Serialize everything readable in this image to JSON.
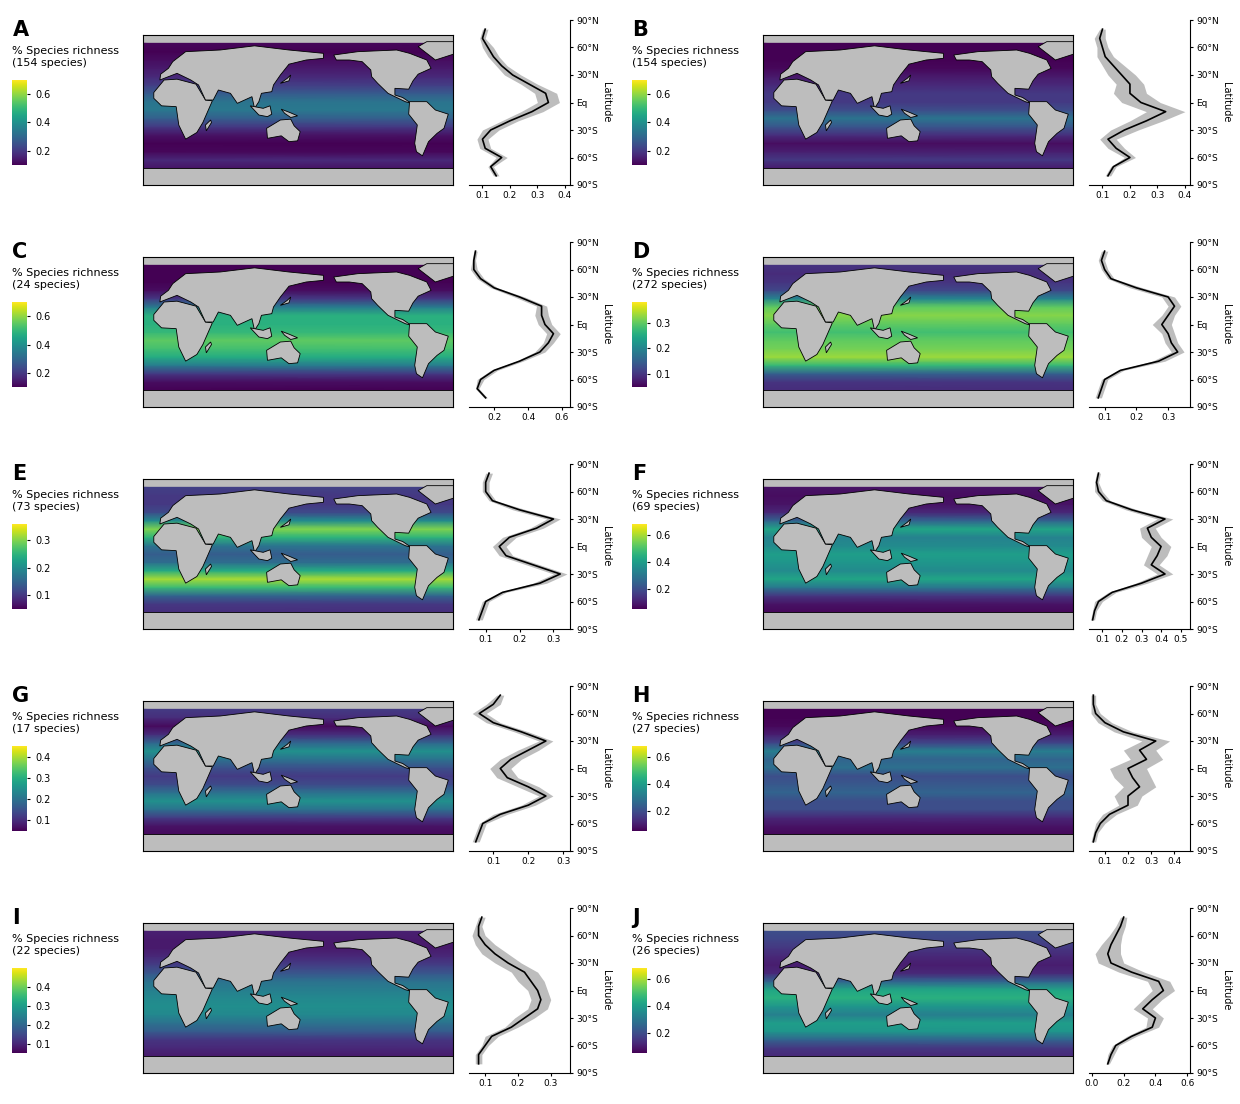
{
  "chart_data": [
    {
      "type": "line",
      "title": "A",
      "colorbar_label": "% Species richness\n(154 species)",
      "colorbar_range": [
        0.1,
        0.7
      ],
      "colorbar_ticks": [
        0.2,
        0.4,
        0.6
      ],
      "latitudes": [
        -80,
        -70,
        -60,
        -50,
        -40,
        -30,
        -20,
        -10,
        0,
        10,
        20,
        30,
        40,
        50,
        60,
        70,
        80
      ],
      "values": [
        0.15,
        0.13,
        0.17,
        0.11,
        0.1,
        0.13,
        0.2,
        0.28,
        0.34,
        0.33,
        0.27,
        0.21,
        0.17,
        0.14,
        0.12,
        0.1,
        0.11
      ],
      "error": [
        0.01,
        0.01,
        0.02,
        0.02,
        0.02,
        0.03,
        0.03,
        0.04,
        0.04,
        0.04,
        0.03,
        0.03,
        0.02,
        0.02,
        0.02,
        0.01,
        0.01
      ],
      "xlim": [
        0.05,
        0.42
      ],
      "xticks": [
        0.1,
        0.2,
        0.3,
        0.4
      ],
      "ylim": [
        -90,
        90
      ],
      "yticks": [
        {
          "value": -90,
          "label": "90°S"
        },
        {
          "value": -60,
          "label": "60°S"
        },
        {
          "value": -30,
          "label": "30°S"
        },
        {
          "value": 0,
          "label": "Eq"
        },
        {
          "value": 30,
          "label": "30°N"
        },
        {
          "value": 60,
          "label": "60°N"
        },
        {
          "value": 90,
          "label": "90°N"
        }
      ],
      "ylabel": "Latitude",
      "color": "#000000"
    },
    {
      "type": "line",
      "title": "B",
      "colorbar_label": "% Species richness\n(154 species)",
      "colorbar_range": [
        0.1,
        0.7
      ],
      "colorbar_ticks": [
        0.2,
        0.4,
        0.6
      ],
      "latitudes": [
        -80,
        -70,
        -60,
        -50,
        -40,
        -30,
        -20,
        -10,
        0,
        10,
        20,
        30,
        40,
        50,
        60,
        70,
        80
      ],
      "values": [
        0.12,
        0.14,
        0.2,
        0.15,
        0.12,
        0.18,
        0.26,
        0.33,
        0.24,
        0.2,
        0.2,
        0.17,
        0.14,
        0.11,
        0.1,
        0.09,
        0.1
      ],
      "error": [
        0.01,
        0.01,
        0.02,
        0.03,
        0.03,
        0.05,
        0.06,
        0.07,
        0.07,
        0.06,
        0.05,
        0.05,
        0.04,
        0.03,
        0.02,
        0.02,
        0.01
      ],
      "xlim": [
        0.05,
        0.42
      ],
      "xticks": [
        0.1,
        0.2,
        0.3,
        0.4
      ],
      "ylim": [
        -90,
        90
      ],
      "yticks": [
        {
          "value": -90,
          "label": "90°S"
        },
        {
          "value": -60,
          "label": "60°S"
        },
        {
          "value": -30,
          "label": "30°S"
        },
        {
          "value": 0,
          "label": "Eq"
        },
        {
          "value": 30,
          "label": "30°N"
        },
        {
          "value": 60,
          "label": "60°N"
        },
        {
          "value": 90,
          "label": "90°N"
        }
      ],
      "ylabel": "Latitude",
      "color": "#000000"
    },
    {
      "type": "line",
      "title": "C",
      "colorbar_label": "% Species richness\n(24 species)",
      "colorbar_range": [
        0.1,
        0.7
      ],
      "colorbar_ticks": [
        0.2,
        0.4,
        0.6
      ],
      "latitudes": [
        -80,
        -70,
        -60,
        -50,
        -40,
        -30,
        -20,
        -10,
        0,
        10,
        20,
        30,
        40,
        50,
        60,
        70,
        80
      ],
      "values": [
        0.15,
        0.1,
        0.12,
        0.2,
        0.35,
        0.47,
        0.52,
        0.55,
        0.5,
        0.48,
        0.48,
        0.35,
        0.2,
        0.12,
        0.08,
        0.08,
        0.09
      ],
      "error": [
        0.01,
        0.01,
        0.02,
        0.02,
        0.02,
        0.03,
        0.03,
        0.04,
        0.04,
        0.04,
        0.03,
        0.03,
        0.02,
        0.02,
        0.02,
        0.01,
        0.01
      ],
      "xlim": [
        0.05,
        0.65
      ],
      "xticks": [
        0.2,
        0.4,
        0.6
      ],
      "ylim": [
        -90,
        90
      ],
      "yticks": [
        {
          "value": -90,
          "label": "90°S"
        },
        {
          "value": -60,
          "label": "60°S"
        },
        {
          "value": -30,
          "label": "30°S"
        },
        {
          "value": 0,
          "label": "Eq"
        },
        {
          "value": 30,
          "label": "30°N"
        },
        {
          "value": 60,
          "label": "60°N"
        },
        {
          "value": 90,
          "label": "90°N"
        }
      ],
      "ylabel": "Latitude",
      "color": "#000000"
    },
    {
      "type": "line",
      "title": "D",
      "colorbar_label": "% Species richness\n(272 species)",
      "colorbar_range": [
        0.05,
        0.38
      ],
      "colorbar_ticks": [
        0.1,
        0.2,
        0.3
      ],
      "latitudes": [
        -80,
        -70,
        -60,
        -50,
        -40,
        -30,
        -20,
        -10,
        0,
        10,
        20,
        30,
        40,
        50,
        60,
        70,
        80
      ],
      "values": [
        0.08,
        0.09,
        0.1,
        0.15,
        0.27,
        0.33,
        0.31,
        0.3,
        0.28,
        0.3,
        0.32,
        0.3,
        0.2,
        0.12,
        0.1,
        0.09,
        0.1
      ],
      "error": [
        0.01,
        0.01,
        0.01,
        0.01,
        0.02,
        0.02,
        0.02,
        0.02,
        0.03,
        0.02,
        0.02,
        0.02,
        0.02,
        0.01,
        0.01,
        0.01,
        0.01
      ],
      "xlim": [
        0.05,
        0.37
      ],
      "xticks": [
        0.1,
        0.2,
        0.3
      ],
      "ylim": [
        -90,
        90
      ],
      "yticks": [
        {
          "value": -90,
          "label": "90°S"
        },
        {
          "value": -60,
          "label": "60°S"
        },
        {
          "value": -30,
          "label": "30°S"
        },
        {
          "value": 0,
          "label": "Eq"
        },
        {
          "value": 30,
          "label": "30°N"
        },
        {
          "value": 60,
          "label": "60°N"
        },
        {
          "value": 90,
          "label": "90°N"
        }
      ],
      "ylabel": "Latitude",
      "color": "#000000"
    },
    {
      "type": "line",
      "title": "E",
      "colorbar_label": "% Species richness\n(73 species)",
      "colorbar_range": [
        0.05,
        0.36
      ],
      "colorbar_ticks": [
        0.1,
        0.2,
        0.3
      ],
      "latitudes": [
        -80,
        -70,
        -60,
        -50,
        -40,
        -30,
        -20,
        -10,
        0,
        10,
        20,
        30,
        40,
        50,
        60,
        70,
        80
      ],
      "values": [
        0.08,
        0.09,
        0.1,
        0.15,
        0.26,
        0.32,
        0.24,
        0.16,
        0.14,
        0.17,
        0.25,
        0.3,
        0.2,
        0.12,
        0.1,
        0.1,
        0.11
      ],
      "error": [
        0.01,
        0.01,
        0.01,
        0.01,
        0.02,
        0.02,
        0.02,
        0.02,
        0.02,
        0.02,
        0.02,
        0.02,
        0.02,
        0.01,
        0.01,
        0.01,
        0.01
      ],
      "xlim": [
        0.05,
        0.35
      ],
      "xticks": [
        0.1,
        0.2,
        0.3
      ],
      "ylim": [
        -90,
        90
      ],
      "yticks": [
        {
          "value": -90,
          "label": "90°S"
        },
        {
          "value": -60,
          "label": "60°S"
        },
        {
          "value": -30,
          "label": "30°S"
        },
        {
          "value": 0,
          "label": "Eq"
        },
        {
          "value": 30,
          "label": "30°N"
        },
        {
          "value": 60,
          "label": "60°N"
        },
        {
          "value": 90,
          "label": "90°N"
        }
      ],
      "ylabel": "Latitude",
      "color": "#000000"
    },
    {
      "type": "line",
      "title": "F",
      "colorbar_label": "% Species richness\n(69 species)",
      "colorbar_range": [
        0.05,
        0.68
      ],
      "colorbar_ticks": [
        0.2,
        0.4,
        0.6
      ],
      "latitudes": [
        -80,
        -70,
        -60,
        -50,
        -40,
        -30,
        -20,
        -10,
        0,
        10,
        20,
        30,
        40,
        50,
        60,
        70,
        80
      ],
      "values": [
        0.05,
        0.06,
        0.08,
        0.15,
        0.3,
        0.42,
        0.35,
        0.38,
        0.4,
        0.35,
        0.33,
        0.42,
        0.25,
        0.12,
        0.08,
        0.07,
        0.08
      ],
      "error": [
        0.01,
        0.01,
        0.02,
        0.02,
        0.03,
        0.04,
        0.04,
        0.05,
        0.05,
        0.05,
        0.04,
        0.04,
        0.03,
        0.02,
        0.02,
        0.01,
        0.01
      ],
      "xlim": [
        0.03,
        0.55
      ],
      "xticks": [
        0.1,
        0.2,
        0.3,
        0.4,
        0.5
      ],
      "ylim": [
        -90,
        90
      ],
      "yticks": [
        {
          "value": -90,
          "label": "90°S"
        },
        {
          "value": -60,
          "label": "60°S"
        },
        {
          "value": -30,
          "label": "30°S"
        },
        {
          "value": 0,
          "label": "Eq"
        },
        {
          "value": 30,
          "label": "30°N"
        },
        {
          "value": 60,
          "label": "60°N"
        },
        {
          "value": 90,
          "label": "90°N"
        }
      ],
      "ylabel": "Latitude",
      "color": "#000000"
    },
    {
      "type": "line",
      "title": "G",
      "colorbar_label": "% Species richness\n(17 species)",
      "colorbar_range": [
        0.05,
        0.45
      ],
      "colorbar_ticks": [
        0.1,
        0.2,
        0.3,
        0.4
      ],
      "latitudes": [
        -80,
        -70,
        -60,
        -50,
        -40,
        -30,
        -20,
        -10,
        0,
        10,
        20,
        30,
        40,
        50,
        60,
        70,
        80
      ],
      "values": [
        0.05,
        0.06,
        0.07,
        0.12,
        0.2,
        0.25,
        0.2,
        0.14,
        0.12,
        0.15,
        0.2,
        0.25,
        0.18,
        0.1,
        0.06,
        0.1,
        0.12
      ],
      "error": [
        0.01,
        0.01,
        0.01,
        0.02,
        0.02,
        0.02,
        0.03,
        0.03,
        0.03,
        0.03,
        0.03,
        0.02,
        0.02,
        0.02,
        0.02,
        0.02,
        0.01
      ],
      "xlim": [
        0.03,
        0.32
      ],
      "xticks": [
        0.1,
        0.2,
        0.3
      ],
      "ylim": [
        -90,
        90
      ],
      "yticks": [
        {
          "value": -90,
          "label": "90°S"
        },
        {
          "value": -60,
          "label": "60°S"
        },
        {
          "value": -30,
          "label": "30°S"
        },
        {
          "value": 0,
          "label": "Eq"
        },
        {
          "value": 30,
          "label": "30°N"
        },
        {
          "value": 60,
          "label": "60°N"
        },
        {
          "value": 90,
          "label": "90°N"
        }
      ],
      "ylabel": "Latitude",
      "color": "#000000"
    },
    {
      "type": "line",
      "title": "H",
      "colorbar_label": "% Species richness\n(27 species)",
      "colorbar_range": [
        0.05,
        0.68
      ],
      "colorbar_ticks": [
        0.2,
        0.4,
        0.6
      ],
      "latitudes": [
        -80,
        -70,
        -60,
        -50,
        -40,
        -30,
        -20,
        -10,
        0,
        10,
        20,
        30,
        40,
        50,
        60,
        70,
        80
      ],
      "values": [
        0.05,
        0.06,
        0.08,
        0.12,
        0.2,
        0.2,
        0.25,
        0.22,
        0.2,
        0.28,
        0.25,
        0.32,
        0.18,
        0.1,
        0.06,
        0.05,
        0.05
      ],
      "error": [
        0.01,
        0.01,
        0.02,
        0.03,
        0.04,
        0.06,
        0.07,
        0.08,
        0.08,
        0.07,
        0.07,
        0.06,
        0.04,
        0.03,
        0.02,
        0.01,
        0.01
      ],
      "xlim": [
        0.03,
        0.47
      ],
      "xticks": [
        0.1,
        0.2,
        0.3,
        0.4
      ],
      "ylim": [
        -90,
        90
      ],
      "yticks": [
        {
          "value": -90,
          "label": "90°S"
        },
        {
          "value": -60,
          "label": "60°S"
        },
        {
          "value": -30,
          "label": "30°S"
        },
        {
          "value": 0,
          "label": "Eq"
        },
        {
          "value": 30,
          "label": "30°N"
        },
        {
          "value": 60,
          "label": "60°N"
        },
        {
          "value": 90,
          "label": "90°N"
        }
      ],
      "ylabel": "Latitude",
      "color": "#000000"
    },
    {
      "type": "line",
      "title": "I",
      "colorbar_label": "% Species richness\n(22 species)",
      "colorbar_range": [
        0.05,
        0.5
      ],
      "colorbar_ticks": [
        0.1,
        0.2,
        0.3,
        0.4
      ],
      "latitudes": [
        -80,
        -70,
        -60,
        -50,
        -40,
        -30,
        -20,
        -10,
        0,
        10,
        20,
        30,
        40,
        50,
        60,
        70,
        80
      ],
      "values": [
        0.08,
        0.08,
        0.1,
        0.12,
        0.18,
        0.22,
        0.26,
        0.27,
        0.26,
        0.24,
        0.22,
        0.17,
        0.13,
        0.1,
        0.08,
        0.08,
        0.09
      ],
      "error": [
        0.01,
        0.01,
        0.01,
        0.02,
        0.02,
        0.03,
        0.03,
        0.03,
        0.03,
        0.04,
        0.04,
        0.04,
        0.04,
        0.03,
        0.02,
        0.01,
        0.01
      ],
      "xlim": [
        0.05,
        0.36
      ],
      "xticks": [
        0.1,
        0.2,
        0.3
      ],
      "ylim": [
        -90,
        90
      ],
      "yticks": [
        {
          "value": -90,
          "label": "90°S"
        },
        {
          "value": -60,
          "label": "60°S"
        },
        {
          "value": -30,
          "label": "30°S"
        },
        {
          "value": 0,
          "label": "Eq"
        },
        {
          "value": 30,
          "label": "30°N"
        },
        {
          "value": 60,
          "label": "60°N"
        },
        {
          "value": 90,
          "label": "90°N"
        }
      ],
      "ylabel": "Latitude",
      "color": "#000000"
    },
    {
      "type": "line",
      "title": "J",
      "colorbar_label": "% Species richness\n(26 species)",
      "colorbar_range": [
        0.05,
        0.68
      ],
      "colorbar_ticks": [
        0.2,
        0.4,
        0.6
      ],
      "latitudes": [
        -80,
        -70,
        -60,
        -50,
        -40,
        -30,
        -20,
        -10,
        0,
        10,
        20,
        30,
        40,
        50,
        60,
        70,
        80
      ],
      "values": [
        0.1,
        0.12,
        0.15,
        0.25,
        0.38,
        0.4,
        0.32,
        0.38,
        0.45,
        0.42,
        0.25,
        0.12,
        0.1,
        0.12,
        0.15,
        0.18,
        0.2
      ],
      "error": [
        0.01,
        0.02,
        0.02,
        0.03,
        0.04,
        0.05,
        0.06,
        0.06,
        0.07,
        0.07,
        0.08,
        0.08,
        0.08,
        0.06,
        0.04,
        0.03,
        0.02
      ],
      "xlim": [
        -0.02,
        0.62
      ],
      "xticks": [
        0.0,
        0.2,
        0.4,
        0.6
      ],
      "ylim": [
        -90,
        90
      ],
      "yticks": [
        {
          "value": -90,
          "label": "90°S"
        },
        {
          "value": -60,
          "label": "60°S"
        },
        {
          "value": -30,
          "label": "30°S"
        },
        {
          "value": 0,
          "label": "Eq"
        },
        {
          "value": 30,
          "label": "30°N"
        },
        {
          "value": 60,
          "label": "60°N"
        },
        {
          "value": 90,
          "label": "90°N"
        }
      ],
      "ylabel": "Latitude",
      "color": "#000000"
    }
  ]
}
